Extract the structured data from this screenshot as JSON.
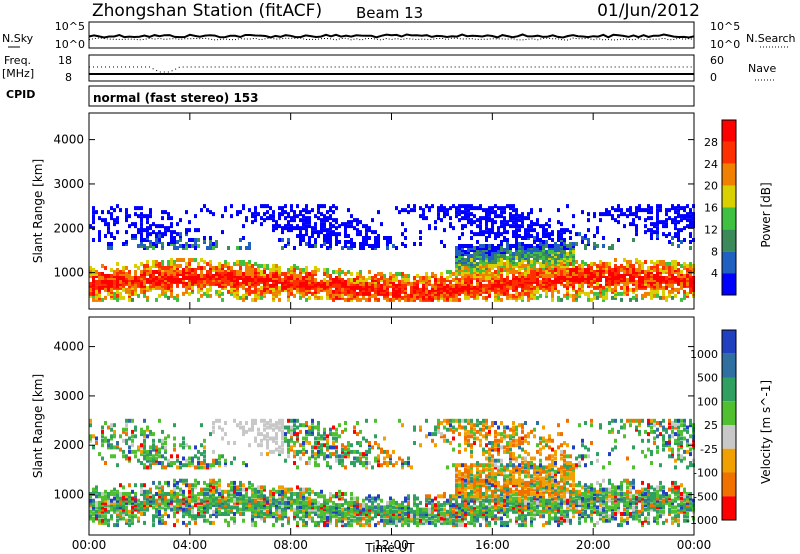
{
  "header": {
    "title": "Zhongshan Station (fitACF)",
    "beam": "Beam 13",
    "date": "01/Jun/2012",
    "mode": "normal (fast stereo) 153"
  },
  "labels": {
    "nsky": "N.Sky",
    "freq": "Freq.",
    "freq_unit": "[MHz]",
    "cpid": "CPID",
    "nsearch": "N.Search",
    "nave": "Nave",
    "noise_tick_top": "10^5",
    "noise_tick_bottom": "10^0",
    "noise_tick_top_r": "10^5",
    "noise_tick_bottom_r": "10^0",
    "freq_tick_top": "18",
    "freq_tick_bottom": "8",
    "nave_tick_top": "60",
    "nave_tick_bottom": "0"
  },
  "colors": {
    "power": [
      "#0000ff",
      "#2060c0",
      "#3c8a5a",
      "#40c040",
      "#d8d000",
      "#f08000",
      "#ff3000",
      "#ff0000"
    ],
    "velocity": [
      "#2040c0",
      "#3070a0",
      "#30a060",
      "#50c030",
      "#c8c8c8",
      "#f0a000",
      "#f07000",
      "#ff0000"
    ]
  },
  "chart_data": [
    {
      "type": "heatmap",
      "panel": "power",
      "xlabel": "",
      "ylabel": "Slant Range [km]",
      "x_ticks": [
        "00:00",
        "04:00",
        "08:00",
        "12:00",
        "16:00",
        "20:00",
        "00:00"
      ],
      "y_ticks": [
        1000,
        2000,
        3000,
        4000
      ],
      "ylim": [
        180,
        4600
      ],
      "colorbar": {
        "label": "Power [dB]",
        "ticks": [
          4,
          8,
          12,
          16,
          20,
          24,
          28
        ],
        "range": [
          0,
          32
        ]
      }
    },
    {
      "type": "heatmap",
      "panel": "velocity",
      "xlabel": "Time UT",
      "ylabel": "Slant Range [km]",
      "x_ticks": [
        "00:00",
        "04:00",
        "08:00",
        "12:00",
        "16:00",
        "20:00",
        "00:00"
      ],
      "y_ticks": [
        1000,
        2000,
        3000,
        4000
      ],
      "ylim": [
        180,
        4600
      ],
      "colorbar": {
        "label": "Velocity [m s^-1]",
        "ticks": [
          1000,
          500,
          100,
          25,
          -25,
          -100,
          -500,
          -1000
        ]
      }
    }
  ]
}
